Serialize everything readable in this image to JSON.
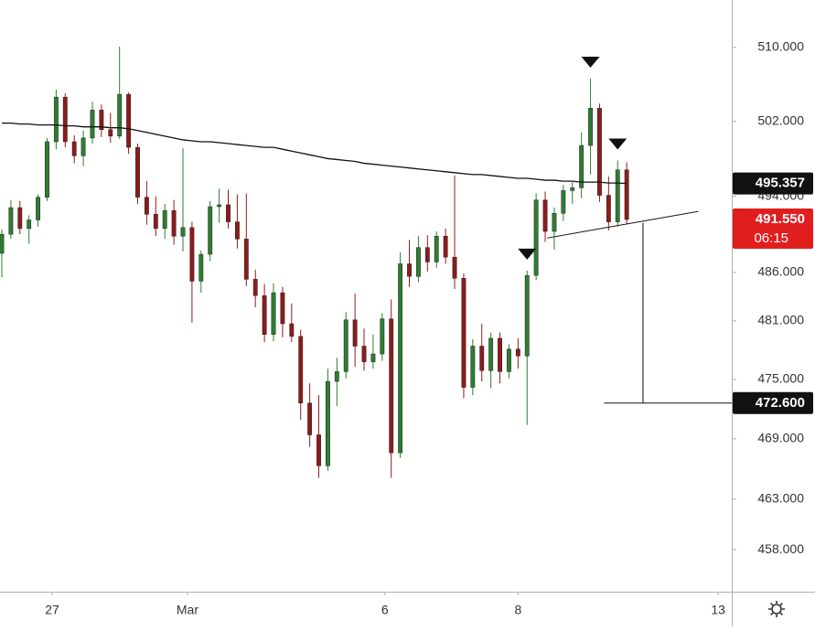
{
  "chart_data": {
    "type": "candlestick",
    "x": [
      0,
      1,
      2,
      3,
      4,
      5,
      6,
      7,
      8,
      9,
      10,
      11,
      12,
      13,
      14,
      15,
      16,
      17,
      18,
      19,
      20,
      21,
      22,
      23,
      24,
      25,
      26,
      27,
      28,
      29,
      30,
      31,
      32,
      33,
      34,
      35,
      36,
      37,
      38,
      39,
      40,
      41,
      42,
      43,
      44,
      45,
      46,
      47,
      48,
      49,
      50,
      51,
      52,
      53,
      54,
      55,
      56,
      57,
      58,
      59,
      60,
      61,
      62,
      63,
      64,
      65,
      66,
      67,
      68,
      69
    ],
    "open": [
      488,
      490,
      492.8,
      490.6,
      491.5,
      493.9,
      499.8,
      504.6,
      499.8,
      498.3,
      500.2,
      503.2,
      501.1,
      500.4,
      504.9,
      499.2,
      493.9,
      492.1,
      490.6,
      492.5,
      489.8,
      490.7,
      485.1,
      487.9,
      492.9,
      493.1,
      491.3,
      489.5,
      485.3,
      483.6,
      479.6,
      483.9,
      480.7,
      479.4,
      472.6,
      469.4,
      466.3,
      474.8,
      475.8,
      481.1,
      478.4,
      476.8,
      477.6,
      481.2,
      467.6,
      486.9,
      485.6,
      488.6,
      487.1,
      489.8,
      487.6,
      485.4,
      474.2,
      478.4,
      475.9,
      479.2,
      475.8,
      478.1,
      477.4,
      485.7,
      493.6,
      490.3,
      492.2,
      494.6,
      494.9,
      499.4,
      503.4,
      494.1,
      491.3,
      496.8
    ],
    "high": [
      490.5,
      493.6,
      493.5,
      492,
      494.2,
      500.2,
      505.4,
      505,
      500.5,
      501,
      504.1,
      503.8,
      502.9,
      510.1,
      505.1,
      499.6,
      495.6,
      494,
      493.2,
      493.6,
      499.1,
      491.3,
      488.3,
      493.5,
      494.8,
      494.7,
      494.2,
      494.3,
      486.3,
      484.8,
      484.9,
      484.5,
      482.8,
      480.1,
      474.6,
      473.4,
      476.1,
      477.2,
      481.9,
      483.8,
      480.2,
      479.6,
      481.8,
      483.2,
      488.1,
      489.4,
      489.8,
      489.9,
      490.3,
      490.6,
      496.2,
      485.9,
      479.1,
      480.7,
      479.8,
      479.8,
      478.6,
      479.2,
      486.2,
      494.3,
      494.5,
      492.8,
      495.2,
      495.5,
      500.8,
      506.6,
      503.9,
      496.1,
      497.8,
      497.6
    ],
    "low": [
      485.5,
      489.5,
      490,
      489,
      490.8,
      493.5,
      499,
      499.2,
      497.5,
      497.2,
      499.6,
      500.3,
      499.7,
      500.1,
      498.5,
      493.2,
      491,
      489.8,
      489.5,
      488.9,
      488.2,
      480.8,
      483.9,
      487.2,
      491.2,
      490.6,
      488.5,
      484.6,
      482.4,
      478.8,
      478.9,
      479.3,
      478.8,
      470.9,
      468.2,
      465.1,
      465.8,
      472.3,
      475.1,
      476.3,
      475.9,
      476.1,
      476.9,
      465.1,
      467.1,
      484.5,
      485,
      486.1,
      486.5,
      486.9,
      484.3,
      473.1,
      473.4,
      474.8,
      474.1,
      474.6,
      475.1,
      476.1,
      470.4,
      485.2,
      489.2,
      488.4,
      491.4,
      493.2,
      493.8,
      496.3,
      493.4,
      490.4,
      490.8,
      491.1
    ],
    "close": [
      490,
      492.8,
      490.6,
      491.5,
      493.9,
      499.8,
      504.6,
      499.8,
      498.3,
      500.2,
      503.2,
      501.1,
      500.4,
      504.9,
      499.2,
      493.9,
      492.1,
      490.6,
      492.5,
      489.8,
      490.7,
      485.1,
      487.9,
      492.9,
      493.1,
      491.3,
      489.5,
      485.3,
      483.6,
      479.6,
      483.9,
      480.7,
      479.4,
      472.6,
      469.4,
      466.3,
      474.8,
      475.8,
      481.1,
      478.4,
      476.8,
      477.6,
      481.2,
      467.6,
      486.9,
      485.6,
      488.6,
      487.1,
      489.8,
      487.6,
      485.4,
      474.2,
      478.4,
      475.9,
      479.2,
      475.8,
      478.1,
      477.4,
      485.7,
      493.6,
      490.3,
      492.2,
      494.6,
      494.9,
      499.4,
      503.4,
      494.1,
      491.3,
      496.8,
      491.55
    ],
    "up_color": "#2e7d32",
    "down_color": "#8e1b1b",
    "ma": {
      "color": "#111111",
      "values": [
        501.8,
        501.8,
        501.7,
        501.7,
        501.6,
        501.6,
        501.6,
        501.5,
        501.5,
        501.4,
        501.4,
        501.4,
        501.3,
        501.3,
        501.2,
        501.0,
        500.8,
        500.6,
        500.4,
        500.2,
        500.0,
        499.9,
        499.8,
        499.8,
        499.7,
        499.6,
        499.5,
        499.4,
        499.3,
        499.2,
        499.2,
        499.0,
        498.8,
        498.6,
        498.4,
        498.2,
        498.0,
        497.9,
        497.8,
        497.7,
        497.5,
        497.4,
        497.3,
        497.2,
        497.1,
        497.0,
        496.9,
        496.8,
        496.7,
        496.6,
        496.5,
        496.4,
        496.3,
        496.3,
        496.2,
        496.1,
        496.0,
        495.9,
        495.9,
        495.8,
        495.7,
        495.7,
        495.6,
        495.6,
        495.5,
        495.5,
        495.5,
        495.4,
        495.4,
        495.357
      ]
    },
    "xlim": [
      -0.2,
      80.6
    ],
    "ylim": [
      453.9,
      515.2
    ],
    "log_scale": true,
    "xticks": [
      {
        "value": 5.56,
        "label": "27"
      },
      {
        "value": 20.5,
        "label": "Mar"
      },
      {
        "value": 42.3,
        "label": "6"
      },
      {
        "value": 57,
        "label": "8"
      },
      {
        "value": 79.1,
        "label": "13"
      }
    ],
    "yticks": [
      {
        "value": 510,
        "label": "510.000"
      },
      {
        "value": 502,
        "label": "502.000"
      },
      {
        "value": 494,
        "label": "494.000"
      },
      {
        "value": 486,
        "label": "486.000"
      },
      {
        "value": 481,
        "label": "481.000"
      },
      {
        "value": 475,
        "label": "475.000"
      },
      {
        "value": 469,
        "label": "469.000"
      },
      {
        "value": 463,
        "label": "463.000"
      },
      {
        "value": 458,
        "label": "458.000"
      }
    ],
    "ma_label": {
      "value": 495.357,
      "label": "495.357"
    },
    "last_price": {
      "value": 491.55,
      "label": "491.550",
      "countdown": "06:15",
      "color": "#e01e1e"
    },
    "target": {
      "value": 472.6,
      "label": "472.600",
      "x_from": 66.5
    },
    "trendline": {
      "x": [
        60.2,
        76.9
      ],
      "y": [
        489.6,
        492.4
      ]
    },
    "measure": {
      "x": 70.8,
      "from": 491.2,
      "to": 472.6
    },
    "peak_markers": [
      58,
      65,
      68
    ]
  }
}
